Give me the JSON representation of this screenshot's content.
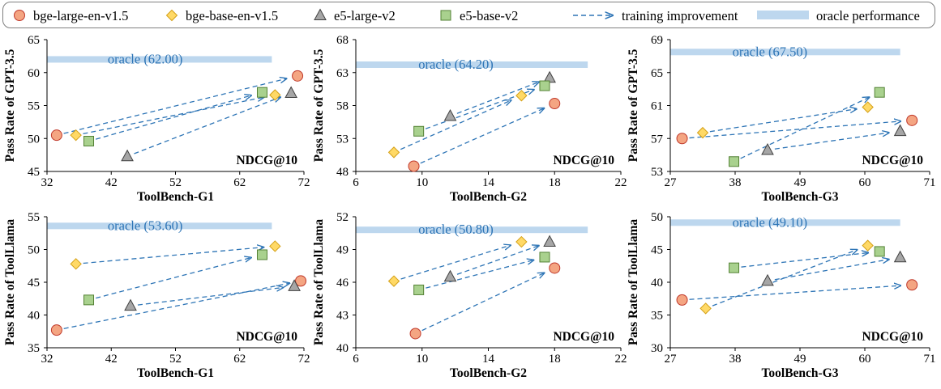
{
  "legend": {
    "series": [
      {
        "key": "bge-large",
        "label": "bge-large-en-v1.5",
        "marker": "circle",
        "color": "#f4a582",
        "stroke": "#c0392b"
      },
      {
        "key": "bge-base",
        "label": "bge-base-en-v1.5",
        "marker": "diamond",
        "color": "#ffd966",
        "stroke": "#d4a017"
      },
      {
        "key": "e5-large",
        "label": "e5-large-v2",
        "marker": "triangle",
        "color": "#a6a6a6",
        "stroke": "#404040"
      },
      {
        "key": "e5-base",
        "label": "e5-base-v2",
        "marker": "square",
        "color": "#a9d18e",
        "stroke": "#548235"
      }
    ],
    "arrow_label": "training improvement",
    "oracle_label": "oracle performance",
    "arrow_color": "#2e75b6",
    "oracle_color": "#bdd7ee"
  },
  "chart_data": [
    {
      "type": "scatter",
      "xlabel": "ToolBench-G1",
      "ylabel": "Pass Rate of GPT-3.5",
      "annotation": "NDCG@10",
      "xlim": [
        32,
        72
      ],
      "xticks": [
        "32",
        "42",
        "52",
        "62",
        "72"
      ],
      "ylim": [
        45,
        65
      ],
      "yticks": [
        "45",
        "50",
        "55",
        "60",
        "65"
      ],
      "oracle": {
        "value": 62.0,
        "label": "oracle (62.00)",
        "x_range": [
          32,
          67
        ]
      },
      "series": [
        {
          "key": "bge-large",
          "from": [
            33.5,
            50.5
          ],
          "to": [
            71.0,
            59.5
          ]
        },
        {
          "key": "bge-base",
          "from": [
            36.5,
            50.5
          ],
          "to": [
            67.5,
            56.6
          ]
        },
        {
          "key": "e5-large",
          "from": [
            44.5,
            47.3
          ],
          "to": [
            70.0,
            56.9
          ]
        },
        {
          "key": "e5-base",
          "from": [
            38.5,
            49.6
          ],
          "to": [
            65.5,
            57.0
          ]
        }
      ]
    },
    {
      "type": "scatter",
      "xlabel": "ToolBench-G2",
      "ylabel": "Pass Rate of GPT-3.5",
      "annotation": "NDCG@10",
      "xlim": [
        6,
        22
      ],
      "xticks": [
        "6",
        "10",
        "14",
        "18",
        "22"
      ],
      "ylim": [
        48,
        68
      ],
      "yticks": [
        "48",
        "53",
        "58",
        "63",
        "68"
      ],
      "oracle": {
        "value": 64.2,
        "label": "oracle (64.20)",
        "x_range": [
          6,
          20
        ]
      },
      "series": [
        {
          "key": "bge-large",
          "from": [
            9.5,
            48.8
          ],
          "to": [
            18.0,
            58.3
          ]
        },
        {
          "key": "bge-base",
          "from": [
            8.3,
            50.9
          ],
          "to": [
            16.0,
            59.5
          ]
        },
        {
          "key": "e5-large",
          "from": [
            11.7,
            56.4
          ],
          "to": [
            17.7,
            62.2
          ]
        },
        {
          "key": "e5-base",
          "from": [
            9.8,
            54.1
          ],
          "to": [
            17.4,
            61.0
          ]
        }
      ]
    },
    {
      "type": "scatter",
      "xlabel": "ToolBench-G3",
      "ylabel": "Pass Rate of GPT-3.5",
      "annotation": "NDCG@10",
      "xlim": [
        27,
        71
      ],
      "xticks": [
        "27",
        "38",
        "49",
        "60",
        "71"
      ],
      "ylim": [
        53,
        69
      ],
      "yticks": [
        "53",
        "57",
        "61",
        "65",
        "69"
      ],
      "oracle": {
        "value": 67.5,
        "label": "oracle (67.50)",
        "x_range": [
          27,
          66
        ]
      },
      "series": [
        {
          "key": "bge-large",
          "from": [
            29.0,
            57.0
          ],
          "to": [
            68.0,
            59.2
          ]
        },
        {
          "key": "bge-base",
          "from": [
            32.5,
            57.7
          ],
          "to": [
            60.5,
            60.8
          ]
        },
        {
          "key": "e5-large",
          "from": [
            43.5,
            55.6
          ],
          "to": [
            66.0,
            57.9
          ]
        },
        {
          "key": "e5-base",
          "from": [
            37.8,
            54.2
          ],
          "to": [
            62.5,
            62.6
          ]
        }
      ]
    },
    {
      "type": "scatter",
      "xlabel": "ToolBench-G1",
      "ylabel": "Pass Rate of ToolLlama",
      "annotation": "NDCG@10",
      "xlim": [
        32,
        72
      ],
      "xticks": [
        "32",
        "42",
        "52",
        "62",
        "72"
      ],
      "ylim": [
        35,
        55
      ],
      "yticks": [
        "35",
        "40",
        "45",
        "50",
        "55"
      ],
      "oracle": {
        "value": 53.6,
        "label": "oracle (53.60)",
        "x_range": [
          32,
          67
        ]
      },
      "series": [
        {
          "key": "bge-large",
          "from": [
            33.5,
            37.7
          ],
          "to": [
            71.5,
            45.2
          ]
        },
        {
          "key": "bge-base",
          "from": [
            36.5,
            47.8
          ],
          "to": [
            67.5,
            50.5
          ]
        },
        {
          "key": "e5-large",
          "from": [
            45.0,
            41.4
          ],
          "to": [
            70.5,
            44.4
          ]
        },
        {
          "key": "e5-base",
          "from": [
            38.5,
            42.3
          ],
          "to": [
            65.5,
            49.2
          ]
        }
      ]
    },
    {
      "type": "scatter",
      "xlabel": "ToolBench-G2",
      "ylabel": "Pass Rate of ToolLlama",
      "annotation": "NDCG@10",
      "xlim": [
        6,
        22
      ],
      "xticks": [
        "6",
        "10",
        "14",
        "18",
        "22"
      ],
      "ylim": [
        40,
        52
      ],
      "yticks": [
        "40",
        "43",
        "46",
        "49",
        "52"
      ],
      "oracle": {
        "value": 50.8,
        "label": "oracle (50.80)",
        "x_range": [
          6,
          20
        ]
      },
      "series": [
        {
          "key": "bge-large",
          "from": [
            9.6,
            41.3
          ],
          "to": [
            18.0,
            47.3
          ]
        },
        {
          "key": "bge-base",
          "from": [
            8.3,
            46.1
          ],
          "to": [
            16.0,
            49.7
          ]
        },
        {
          "key": "e5-large",
          "from": [
            11.7,
            46.5
          ],
          "to": [
            17.7,
            49.7
          ]
        },
        {
          "key": "e5-base",
          "from": [
            9.8,
            45.3
          ],
          "to": [
            17.4,
            48.3
          ]
        }
      ]
    },
    {
      "type": "scatter",
      "xlabel": "ToolBench-G3",
      "ylabel": "Pass Rate of ToolLlama",
      "annotation": "NDCG@10",
      "xlim": [
        27,
        71
      ],
      "xticks": [
        "27",
        "38",
        "49",
        "60",
        "71"
      ],
      "ylim": [
        30,
        50
      ],
      "yticks": [
        "30",
        "35",
        "40",
        "45",
        "50"
      ],
      "oracle": {
        "value": 49.1,
        "label": "oracle (49.10)",
        "x_range": [
          27,
          66
        ]
      },
      "series": [
        {
          "key": "bge-large",
          "from": [
            29.0,
            37.3
          ],
          "to": [
            68.0,
            39.6
          ]
        },
        {
          "key": "bge-base",
          "from": [
            33.0,
            36.0
          ],
          "to": [
            60.5,
            45.6
          ]
        },
        {
          "key": "e5-large",
          "from": [
            43.5,
            40.2
          ],
          "to": [
            66.0,
            43.8
          ]
        },
        {
          "key": "e5-base",
          "from": [
            37.8,
            42.2
          ],
          "to": [
            62.5,
            44.7
          ]
        }
      ]
    }
  ]
}
